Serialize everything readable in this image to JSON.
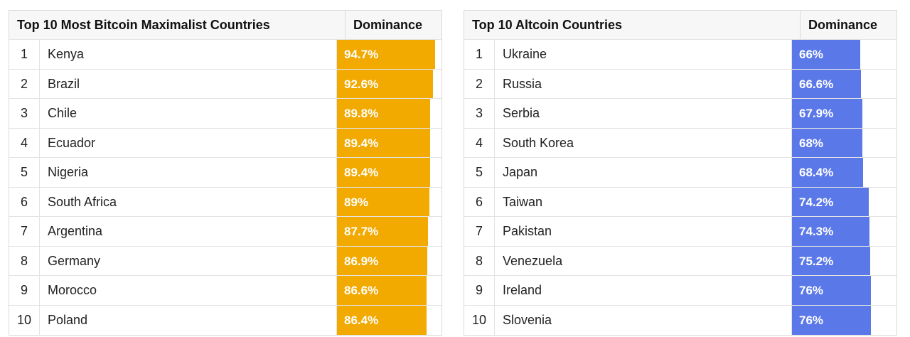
{
  "chart_data": [
    {
      "type": "table",
      "title": "Top 10 Most Bitcoin Maximalist Countries",
      "value_header": "Dominance",
      "bar_color": "#f2a900",
      "bar_max": 100,
      "rows": [
        {
          "rank": "1",
          "country": "Kenya",
          "value": 94.7,
          "label": "94.7%"
        },
        {
          "rank": "2",
          "country": "Brazil",
          "value": 92.6,
          "label": "92.6%"
        },
        {
          "rank": "3",
          "country": "Chile",
          "value": 89.8,
          "label": "89.8%"
        },
        {
          "rank": "4",
          "country": "Ecuador",
          "value": 89.4,
          "label": "89.4%"
        },
        {
          "rank": "5",
          "country": "Nigeria",
          "value": 89.4,
          "label": "89.4%"
        },
        {
          "rank": "6",
          "country": "South Africa",
          "value": 89,
          "label": "89%"
        },
        {
          "rank": "7",
          "country": "Argentina",
          "value": 87.7,
          "label": "87.7%"
        },
        {
          "rank": "8",
          "country": "Germany",
          "value": 86.9,
          "label": "86.9%"
        },
        {
          "rank": "9",
          "country": "Morocco",
          "value": 86.6,
          "label": "86.6%"
        },
        {
          "rank": "10",
          "country": "Poland",
          "value": 86.4,
          "label": "86.4%"
        }
      ]
    },
    {
      "type": "table",
      "title": "Top 10 Altcoin Countries",
      "value_header": "Dominance",
      "bar_color": "#5a78e8",
      "bar_max": 100,
      "rows": [
        {
          "rank": "1",
          "country": "Ukraine",
          "value": 66,
          "label": "66%"
        },
        {
          "rank": "2",
          "country": "Russia",
          "value": 66.6,
          "label": "66.6%"
        },
        {
          "rank": "3",
          "country": "Serbia",
          "value": 67.9,
          "label": "67.9%"
        },
        {
          "rank": "4",
          "country": "South Korea",
          "value": 68,
          "label": "68%"
        },
        {
          "rank": "5",
          "country": "Japan",
          "value": 68.4,
          "label": "68.4%"
        },
        {
          "rank": "6",
          "country": "Taiwan",
          "value": 74.2,
          "label": "74.2%"
        },
        {
          "rank": "7",
          "country": "Pakistan",
          "value": 74.3,
          "label": "74.3%"
        },
        {
          "rank": "8",
          "country": "Venezuela",
          "value": 75.2,
          "label": "75.2%"
        },
        {
          "rank": "9",
          "country": "Ireland",
          "value": 76,
          "label": "76%"
        },
        {
          "rank": "10",
          "country": "Slovenia",
          "value": 76,
          "label": "76%"
        }
      ]
    }
  ]
}
